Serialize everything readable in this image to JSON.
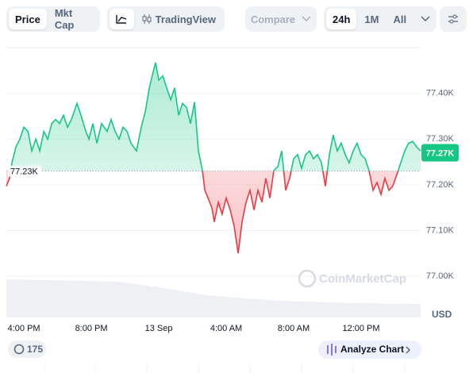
{
  "toolbar": {
    "price": "Price",
    "mkt_cap": "Mkt Cap",
    "tradingview": "TradingView",
    "compare": "Compare",
    "range_24h": "24h",
    "range_1m": "1M",
    "range_all": "All"
  },
  "chart_data": {
    "type": "line",
    "x": [
      -1.04,
      -0.85,
      -0.71,
      -0.47,
      -0.24,
      0,
      0.24,
      0.47,
      0.71,
      0.94,
      1.18,
      1.41,
      1.65,
      1.88,
      2.12,
      2.35,
      2.59,
      2.82,
      3.15,
      3.39,
      3.67,
      3.86,
      4.09,
      4.33,
      4.61,
      4.94,
      5.18,
      5.41,
      5.65,
      5.88,
      6.12,
      6.35,
      6.68,
      6.96,
      7.2,
      7.44,
      7.67,
      7.81,
      8,
      8.24,
      8.47,
      8.71,
      8.94,
      9.18,
      9.41,
      9.65,
      9.88,
      10.12,
      10.35,
      10.59,
      10.73,
      10.92,
      11.15,
      11.29,
      11.53,
      11.76,
      12,
      12.24,
      12.47,
      12.71,
      12.94,
      13.18,
      13.41,
      13.65,
      13.88,
      14.12,
      14.35,
      14.59,
      14.82,
      15.06,
      15.29,
      15.53,
      15.76,
      16,
      16.24,
      16.47,
      16.71,
      16.94,
      17.18,
      17.41,
      17.65,
      17.88,
      18.12,
      18.35,
      18.59,
      18.82,
      19.06,
      19.29,
      19.53,
      19.76,
      20,
      20.24,
      20.47,
      20.71,
      20.94,
      21.18,
      21.41,
      21.65,
      21.88,
      22.12,
      22.35,
      22.59,
      22.82,
      23.06,
      23.29,
      23.53
    ],
    "values": [
      77197,
      77214,
      77248,
      77283,
      77300,
      77326,
      77317,
      77274,
      77300,
      77274,
      77317,
      77300,
      77334,
      77343,
      77334,
      77352,
      77326,
      77343,
      77378,
      77352,
      77317,
      77300,
      77334,
      77291,
      77334,
      77317,
      77343,
      77317,
      77300,
      77326,
      77317,
      77291,
      77274,
      77326,
      77360,
      77412,
      77447,
      77467,
      77429,
      77438,
      77412,
      77386,
      77412,
      77352,
      77378,
      77369,
      77334,
      77381,
      77274,
      77231,
      77188,
      77171,
      77150,
      77119,
      77162,
      77136,
      77171,
      77145,
      77110,
      77050,
      77119,
      77162,
      77188,
      77145,
      77188,
      77162,
      77214,
      77171,
      77231,
      77240,
      77274,
      77188,
      77214,
      77257,
      77266,
      77236,
      77266,
      77274,
      77257,
      77266,
      77248,
      77197,
      77266,
      77309,
      77274,
      77291,
      77266,
      77248,
      77274,
      77291,
      77266,
      77257,
      77231,
      77188,
      77205,
      77179,
      77214,
      77188,
      77197,
      77222,
      77248,
      77274,
      77291,
      77295,
      77283,
      77274
    ],
    "xlim": [
      -1.04,
      23.53
    ],
    "xticks": [
      {
        "value": 0,
        "label": "4:00 PM"
      },
      {
        "value": 4,
        "label": "8:00 PM"
      },
      {
        "value": 8,
        "label": "13 Sep"
      },
      {
        "value": 12,
        "label": "4:00 AM"
      },
      {
        "value": 16,
        "label": "8:00 AM"
      },
      {
        "value": 20,
        "label": "12:00 PM"
      }
    ],
    "ylim": [
      76910,
      77500
    ],
    "yticks": [
      {
        "value": 77000,
        "label": "77.00K"
      },
      {
        "value": 77100,
        "label": "77.10K"
      },
      {
        "value": 77200,
        "label": "77.20K"
      },
      {
        "value": 77300,
        "label": "77.30K"
      },
      {
        "value": 77400,
        "label": "77.40K"
      }
    ],
    "baseline": {
      "value": 77230,
      "label": "77.23K"
    },
    "current": {
      "value": 77270,
      "label": "77.27K"
    },
    "y_unit": "USD",
    "watermark": "CoinMarketCap",
    "color_up": "#16c784",
    "color_down": "#ea3943",
    "grid": true
  },
  "footer": {
    "badge": "175",
    "analyze": "Analyze Chart"
  }
}
